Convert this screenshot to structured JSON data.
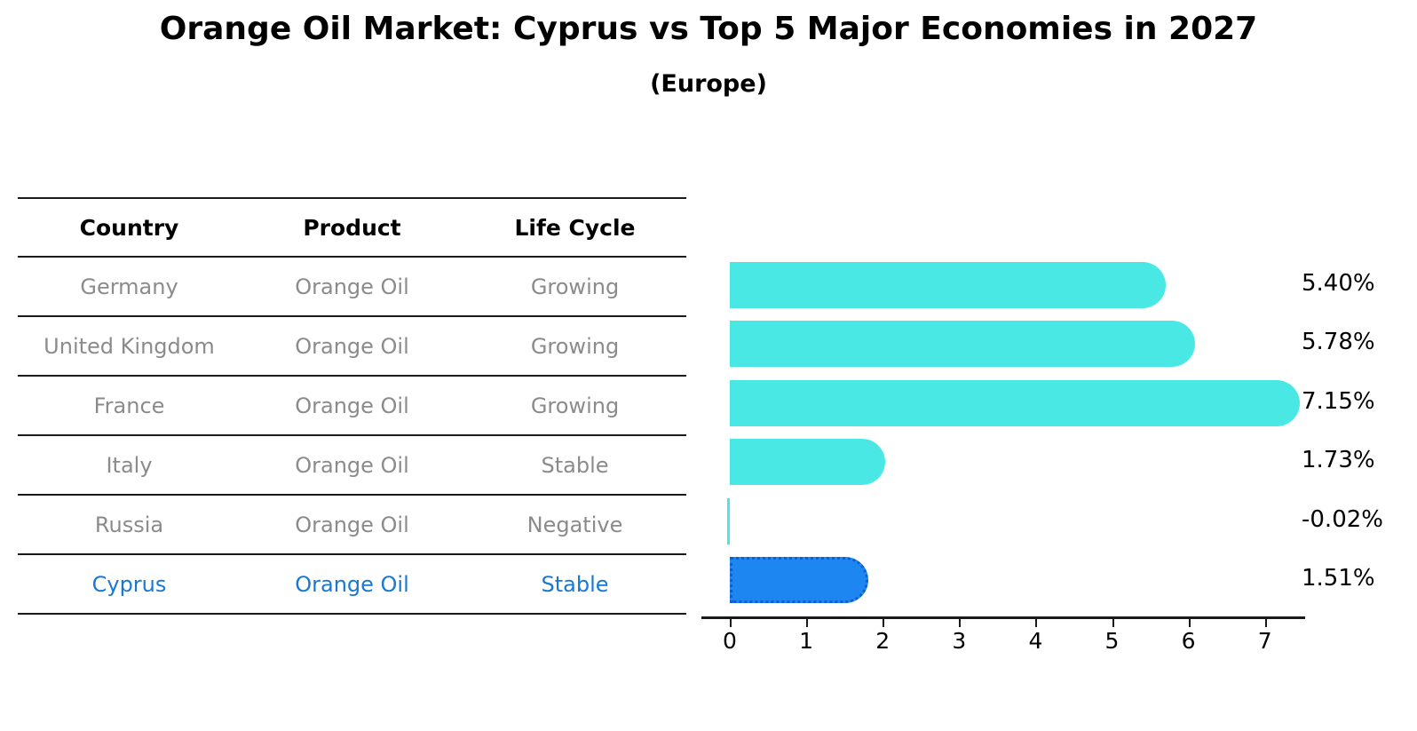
{
  "title": "Orange Oil Market: Cyprus vs Top 5 Major Economies in 2027",
  "subtitle": "(Europe)",
  "table": {
    "headers": {
      "country": "Country",
      "product": "Product",
      "life_cycle": "Life Cycle"
    },
    "rows": [
      {
        "country": "Germany",
        "product": "Orange Oil",
        "life_cycle": "Growing",
        "highlight": false
      },
      {
        "country": "United Kingdom",
        "product": "Orange Oil",
        "life_cycle": "Growing",
        "highlight": false
      },
      {
        "country": "France",
        "product": "Orange Oil",
        "life_cycle": "Growing",
        "highlight": false
      },
      {
        "country": "Italy",
        "product": "Orange Oil",
        "life_cycle": "Stable",
        "highlight": false
      },
      {
        "country": "Russia",
        "product": "Orange Oil",
        "life_cycle": "Negative",
        "highlight": false
      },
      {
        "country": "Cyprus",
        "product": "Orange Oil",
        "life_cycle": "Stable",
        "highlight": true
      }
    ]
  },
  "chart_data": {
    "type": "bar",
    "orientation": "horizontal",
    "title": "Orange Oil Market: Cyprus vs Top 5 Major Economies in 2027",
    "subtitle": "(Europe)",
    "categories": [
      "Germany",
      "United Kingdom",
      "France",
      "Italy",
      "Russia",
      "Cyprus"
    ],
    "values": [
      5.4,
      5.78,
      7.15,
      1.73,
      -0.02,
      1.51
    ],
    "value_labels": [
      "5.40%",
      "5.78%",
      "7.15%",
      "1.73%",
      "-0.02%",
      "1.51%"
    ],
    "xlim": [
      0,
      7
    ],
    "xticks": [
      0,
      1,
      2,
      3,
      4,
      5,
      6,
      7
    ],
    "grid": false,
    "legend": "none",
    "bar_color": "#4AE8E4",
    "highlight_color": "#1E86F0",
    "highlight_index": 5
  },
  "colors": {
    "table_line": "#1a1a1a",
    "cell_text": "#8b8b8b",
    "highlight_text": "#1878d2",
    "label_text": "#000000"
  }
}
